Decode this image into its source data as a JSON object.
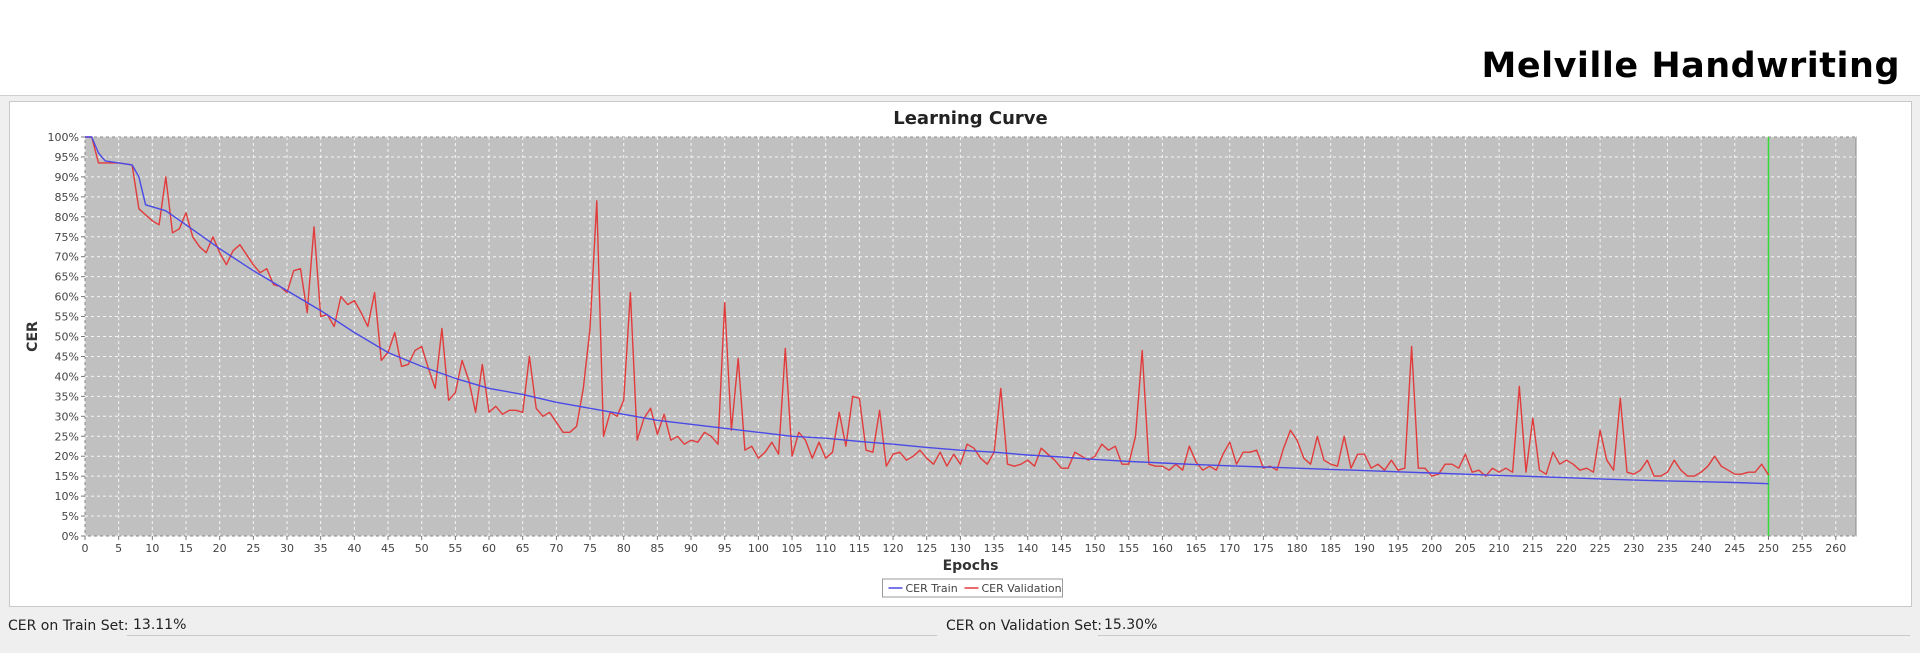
{
  "header": {
    "title": "Melville Handwriting"
  },
  "footer": {
    "train_label": "CER on Train Set:",
    "train_value": "13.11%",
    "val_label": "CER on Validation Set:",
    "val_value": "15.30%"
  },
  "chart_data": {
    "type": "line",
    "title": "Learning Curve",
    "xlabel": "Epochs",
    "ylabel": "CER",
    "xlim": [
      0,
      263
    ],
    "ylim": [
      0,
      100
    ],
    "x_ticks": [
      0,
      5,
      10,
      15,
      20,
      25,
      30,
      35,
      40,
      45,
      50,
      55,
      60,
      65,
      70,
      75,
      80,
      85,
      90,
      95,
      100,
      105,
      110,
      115,
      120,
      125,
      130,
      135,
      140,
      145,
      150,
      155,
      160,
      165,
      170,
      175,
      180,
      185,
      190,
      195,
      200,
      205,
      210,
      215,
      220,
      225,
      230,
      235,
      240,
      245,
      250,
      255,
      260
    ],
    "y_ticks": [
      "0%",
      "5%",
      "10%",
      "15%",
      "20%",
      "25%",
      "30%",
      "35%",
      "40%",
      "45%",
      "50%",
      "55%",
      "60%",
      "65%",
      "70%",
      "75%",
      "80%",
      "85%",
      "90%",
      "95%",
      "100%"
    ],
    "grid": true,
    "legend_position": "bottom-center",
    "marker_line": {
      "x": 250,
      "color": "#33dd33"
    },
    "colors": {
      "plot_bg": "#c0c0c0",
      "train": "#4a4ae6",
      "validation": "#e23b3b"
    },
    "series": [
      {
        "name": "CER Train",
        "points": [
          [
            0,
            100
          ],
          [
            1,
            100
          ],
          [
            2,
            96
          ],
          [
            3,
            94
          ],
          [
            5,
            93.5
          ],
          [
            7,
            93
          ],
          [
            8,
            90
          ],
          [
            9,
            83
          ],
          [
            10,
            82.5
          ],
          [
            12,
            81.5
          ],
          [
            15,
            78
          ],
          [
            20,
            72
          ],
          [
            25,
            66.5
          ],
          [
            30,
            61.5
          ],
          [
            35,
            56.5
          ],
          [
            40,
            51
          ],
          [
            45,
            46
          ],
          [
            50,
            42.5
          ],
          [
            55,
            39.5
          ],
          [
            60,
            37
          ],
          [
            65,
            35.5
          ],
          [
            70,
            33.5
          ],
          [
            75,
            32
          ],
          [
            80,
            30.5
          ],
          [
            85,
            29
          ],
          [
            90,
            28
          ],
          [
            95,
            27
          ],
          [
            100,
            26
          ],
          [
            105,
            25
          ],
          [
            110,
            24.5
          ],
          [
            115,
            23.7
          ],
          [
            120,
            23
          ],
          [
            125,
            22.2
          ],
          [
            130,
            21.5
          ],
          [
            135,
            21
          ],
          [
            140,
            20.3
          ],
          [
            145,
            19.8
          ],
          [
            150,
            19.2
          ],
          [
            155,
            18.7
          ],
          [
            160,
            18.3
          ],
          [
            165,
            17.9
          ],
          [
            170,
            17.6
          ],
          [
            175,
            17.3
          ],
          [
            180,
            17
          ],
          [
            185,
            16.7
          ],
          [
            190,
            16.4
          ],
          [
            195,
            16.1
          ],
          [
            200,
            15.8
          ],
          [
            205,
            15.5
          ],
          [
            210,
            15.2
          ],
          [
            215,
            14.9
          ],
          [
            220,
            14.6
          ],
          [
            225,
            14.3
          ],
          [
            230,
            14
          ],
          [
            235,
            13.8
          ],
          [
            240,
            13.6
          ],
          [
            245,
            13.4
          ],
          [
            250,
            13.1
          ]
        ]
      },
      {
        "name": "CER Validation",
        "points": [
          [
            0,
            100
          ],
          [
            1,
            100
          ],
          [
            2,
            93.5
          ],
          [
            3,
            93.5
          ],
          [
            5,
            93.5
          ],
          [
            7,
            93
          ],
          [
            8,
            82
          ],
          [
            9,
            80.5
          ],
          [
            10,
            79
          ],
          [
            11,
            78
          ],
          [
            12,
            90
          ],
          [
            13,
            76
          ],
          [
            14,
            77
          ],
          [
            15,
            81
          ],
          [
            16,
            75
          ],
          [
            17,
            72.5
          ],
          [
            18,
            71
          ],
          [
            19,
            75
          ],
          [
            20,
            71
          ],
          [
            21,
            68
          ],
          [
            22,
            71.5
          ],
          [
            23,
            73
          ],
          [
            24,
            70.5
          ],
          [
            25,
            68
          ],
          [
            26,
            66
          ],
          [
            27,
            67
          ],
          [
            28,
            63
          ],
          [
            29,
            62.5
          ],
          [
            30,
            61
          ],
          [
            31,
            66.5
          ],
          [
            32,
            67
          ],
          [
            33,
            56
          ],
          [
            34,
            77.5
          ],
          [
            35,
            55
          ],
          [
            36,
            55.5
          ],
          [
            37,
            52.5
          ],
          [
            38,
            60
          ],
          [
            39,
            58
          ],
          [
            40,
            59
          ],
          [
            41,
            56
          ],
          [
            42,
            52.5
          ],
          [
            43,
            61
          ],
          [
            44,
            44
          ],
          [
            45,
            46
          ],
          [
            46,
            51
          ],
          [
            47,
            42.5
          ],
          [
            48,
            43
          ],
          [
            49,
            46.5
          ],
          [
            50,
            47.5
          ],
          [
            51,
            42
          ],
          [
            52,
            37
          ],
          [
            53,
            52
          ],
          [
            54,
            34
          ],
          [
            55,
            36
          ],
          [
            56,
            44
          ],
          [
            57,
            39
          ],
          [
            58,
            31
          ],
          [
            59,
            43
          ],
          [
            60,
            31
          ],
          [
            61,
            32.5
          ],
          [
            62,
            30.5
          ],
          [
            63,
            31.5
          ],
          [
            64,
            31.5
          ],
          [
            65,
            31
          ],
          [
            66,
            45
          ],
          [
            67,
            32
          ],
          [
            68,
            30
          ],
          [
            69,
            31
          ],
          [
            70,
            28.5
          ],
          [
            71,
            26
          ],
          [
            72,
            26
          ],
          [
            73,
            27.5
          ],
          [
            74,
            37
          ],
          [
            75,
            52
          ],
          [
            76,
            84
          ],
          [
            77,
            25
          ],
          [
            78,
            31
          ],
          [
            79,
            30
          ],
          [
            80,
            34
          ],
          [
            81,
            61
          ],
          [
            82,
            24
          ],
          [
            83,
            29.5
          ],
          [
            84,
            32
          ],
          [
            85,
            25.5
          ],
          [
            86,
            30.5
          ],
          [
            87,
            24
          ],
          [
            88,
            25
          ],
          [
            89,
            23
          ],
          [
            90,
            24
          ],
          [
            91,
            23.5
          ],
          [
            92,
            26
          ],
          [
            93,
            25
          ],
          [
            94,
            23
          ],
          [
            95,
            58.5
          ],
          [
            96,
            26.5
          ],
          [
            97,
            44.5
          ],
          [
            98,
            21.5
          ],
          [
            99,
            22.5
          ],
          [
            100,
            19.5
          ],
          [
            101,
            21
          ],
          [
            102,
            23.5
          ],
          [
            103,
            20.5
          ],
          [
            104,
            47
          ],
          [
            105,
            20
          ],
          [
            106,
            26
          ],
          [
            107,
            24
          ],
          [
            108,
            19.5
          ],
          [
            109,
            23.5
          ],
          [
            110,
            19.5
          ],
          [
            111,
            21
          ],
          [
            112,
            31
          ],
          [
            113,
            22.5
          ],
          [
            114,
            35
          ],
          [
            115,
            34.5
          ],
          [
            116,
            21.5
          ],
          [
            117,
            21
          ],
          [
            118,
            31.5
          ],
          [
            119,
            17.5
          ],
          [
            120,
            20.5
          ],
          [
            121,
            21
          ],
          [
            122,
            19
          ],
          [
            123,
            20
          ],
          [
            124,
            21.5
          ],
          [
            125,
            19.5
          ],
          [
            126,
            18
          ],
          [
            127,
            21
          ],
          [
            128,
            17.5
          ],
          [
            129,
            20.5
          ],
          [
            130,
            18
          ],
          [
            131,
            23
          ],
          [
            132,
            22
          ],
          [
            133,
            19.5
          ],
          [
            134,
            18
          ],
          [
            135,
            21
          ],
          [
            136,
            37
          ],
          [
            137,
            18
          ],
          [
            138,
            17.5
          ],
          [
            139,
            18
          ],
          [
            140,
            19
          ],
          [
            141,
            17.5
          ],
          [
            142,
            22
          ],
          [
            143,
            20.5
          ],
          [
            144,
            19
          ],
          [
            145,
            17
          ],
          [
            146,
            17
          ],
          [
            147,
            21
          ],
          [
            148,
            20
          ],
          [
            149,
            19
          ],
          [
            150,
            20
          ],
          [
            151,
            23
          ],
          [
            152,
            21.5
          ],
          [
            153,
            22.5
          ],
          [
            154,
            18
          ],
          [
            155,
            18
          ],
          [
            156,
            25
          ],
          [
            157,
            46.5
          ],
          [
            158,
            18
          ],
          [
            159,
            17.5
          ],
          [
            160,
            17.5
          ],
          [
            161,
            16.5
          ],
          [
            162,
            18
          ],
          [
            163,
            16.5
          ],
          [
            164,
            22.5
          ],
          [
            165,
            18.5
          ],
          [
            166,
            16.5
          ],
          [
            167,
            17.5
          ],
          [
            168,
            16.5
          ],
          [
            169,
            20.5
          ],
          [
            170,
            23.5
          ],
          [
            171,
            18
          ],
          [
            172,
            21
          ],
          [
            173,
            21
          ],
          [
            174,
            21.5
          ],
          [
            175,
            17
          ],
          [
            176,
            17.5
          ],
          [
            177,
            16.5
          ],
          [
            178,
            22
          ],
          [
            179,
            26.5
          ],
          [
            180,
            24
          ],
          [
            181,
            19.5
          ],
          [
            182,
            18
          ],
          [
            183,
            25
          ],
          [
            184,
            19
          ],
          [
            185,
            18
          ],
          [
            186,
            17.5
          ],
          [
            187,
            25
          ],
          [
            188,
            17
          ],
          [
            189,
            20.5
          ],
          [
            190,
            20.5
          ],
          [
            191,
            17
          ],
          [
            192,
            18
          ],
          [
            193,
            16.5
          ],
          [
            194,
            19
          ],
          [
            195,
            16.5
          ],
          [
            196,
            17
          ],
          [
            197,
            47.5
          ],
          [
            198,
            17
          ],
          [
            199,
            17
          ],
          [
            200,
            15
          ],
          [
            201,
            15.5
          ],
          [
            202,
            18
          ],
          [
            203,
            18
          ],
          [
            204,
            17
          ],
          [
            205,
            20.5
          ],
          [
            206,
            16
          ],
          [
            207,
            16.5
          ],
          [
            208,
            15
          ],
          [
            209,
            17
          ],
          [
            210,
            16
          ],
          [
            211,
            17
          ],
          [
            212,
            16
          ],
          [
            213,
            37.5
          ],
          [
            214,
            16
          ],
          [
            215,
            29.5
          ],
          [
            216,
            16.5
          ],
          [
            217,
            15.5
          ],
          [
            218,
            21
          ],
          [
            219,
            18
          ],
          [
            220,
            19
          ],
          [
            221,
            18
          ],
          [
            222,
            16.5
          ],
          [
            223,
            17
          ],
          [
            224,
            16
          ],
          [
            225,
            26.5
          ],
          [
            226,
            19
          ],
          [
            227,
            16.5
          ],
          [
            228,
            34.5
          ],
          [
            229,
            16
          ],
          [
            230,
            15.5
          ],
          [
            231,
            16.5
          ],
          [
            232,
            19
          ],
          [
            233,
            15
          ],
          [
            234,
            15
          ],
          [
            235,
            16
          ],
          [
            236,
            19
          ],
          [
            237,
            16.5
          ],
          [
            238,
            15
          ],
          [
            239,
            15
          ],
          [
            240,
            16
          ],
          [
            241,
            17.5
          ],
          [
            242,
            20
          ],
          [
            243,
            17.5
          ],
          [
            244,
            16.5
          ],
          [
            245,
            15.5
          ],
          [
            246,
            15.5
          ],
          [
            247,
            16
          ],
          [
            248,
            16
          ],
          [
            249,
            18
          ],
          [
            250,
            15.3
          ]
        ]
      }
    ]
  }
}
